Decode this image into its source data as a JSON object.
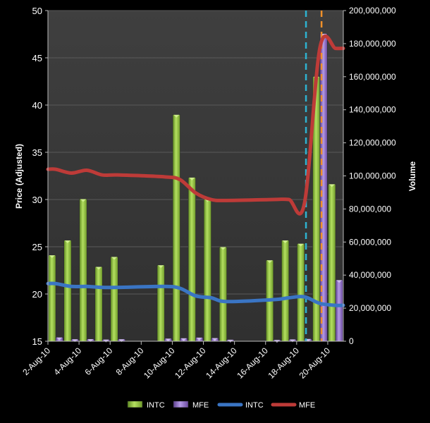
{
  "chart_data": {
    "type": "bar",
    "y_left_label": "Price (Adjusted)",
    "y_right_label": "Volume",
    "y_left_range": [
      15,
      50
    ],
    "y_left_ticks": [
      "15",
      "20",
      "25",
      "30",
      "35",
      "40",
      "45",
      "50"
    ],
    "y_right_range": [
      0,
      200000000
    ],
    "y_right_ticks": [
      "0",
      "20,000,000",
      "40,000,000",
      "60,000,000",
      "80,000,000",
      "100,000,000",
      "120,000,000",
      "140,000,000",
      "160,000,000",
      "180,000,000",
      "200,000,000"
    ],
    "x_range": [
      "2010-08-02",
      "2010-08-21"
    ],
    "x_tick_dates": [
      "2010-08-02",
      "2010-08-04",
      "2010-08-06",
      "2010-08-08",
      "2010-08-10",
      "2010-08-12",
      "2010-08-14",
      "2010-08-16",
      "2010-08-18",
      "2010-08-20"
    ],
    "x_tick_labels": [
      "2-Aug-10",
      "4-Aug-10",
      "6-Aug-10",
      "8-Aug-10",
      "10-Aug-10",
      "12-Aug-10",
      "14-Aug-10",
      "16-Aug-10",
      "18-Aug-10",
      "20-Aug-10"
    ],
    "grid": "horizontal",
    "legend_position": "bottom",
    "legend": [
      {
        "label": "INTC",
        "kind": "bar",
        "color": "#8cbf3c"
      },
      {
        "label": "MFE",
        "kind": "bar",
        "color": "#8e6cc3"
      },
      {
        "label": "INTC",
        "kind": "line",
        "color": "#3a75c4"
      },
      {
        "label": "MFE",
        "kind": "line",
        "color": "#be3b38"
      }
    ],
    "series": [
      {
        "name": "INTC",
        "kind": "bar",
        "axis": "right",
        "color": "#8cbf3c",
        "points": [
          {
            "date": "2010-08-02",
            "value": 52000000
          },
          {
            "date": "2010-08-03",
            "value": 61000000
          },
          {
            "date": "2010-08-04",
            "value": 86000000
          },
          {
            "date": "2010-08-05",
            "value": 45000000
          },
          {
            "date": "2010-08-06",
            "value": 51000000
          },
          {
            "date": "2010-08-09",
            "value": 46000000
          },
          {
            "date": "2010-08-10",
            "value": 137000000
          },
          {
            "date": "2010-08-11",
            "value": 99000000
          },
          {
            "date": "2010-08-12",
            "value": 86000000
          },
          {
            "date": "2010-08-13",
            "value": 57000000
          },
          {
            "date": "2010-08-16",
            "value": 49000000
          },
          {
            "date": "2010-08-17",
            "value": 61000000
          },
          {
            "date": "2010-08-18",
            "value": 59000000
          },
          {
            "date": "2010-08-19",
            "value": 160000000
          },
          {
            "date": "2010-08-20",
            "value": 95000000
          }
        ]
      },
      {
        "name": "MFE",
        "kind": "bar",
        "axis": "right",
        "color": "#8e6cc3",
        "points": [
          {
            "date": "2010-08-02",
            "value": 2300000
          },
          {
            "date": "2010-08-03",
            "value": 1200000
          },
          {
            "date": "2010-08-04",
            "value": 1300000
          },
          {
            "date": "2010-08-05",
            "value": 1000000
          },
          {
            "date": "2010-08-06",
            "value": 1200000
          },
          {
            "date": "2010-08-09",
            "value": 1600000
          },
          {
            "date": "2010-08-10",
            "value": 1800000
          },
          {
            "date": "2010-08-11",
            "value": 2200000
          },
          {
            "date": "2010-08-12",
            "value": 1900000
          },
          {
            "date": "2010-08-13",
            "value": 900000
          },
          {
            "date": "2010-08-16",
            "value": 800000
          },
          {
            "date": "2010-08-17",
            "value": 1100000
          },
          {
            "date": "2010-08-18",
            "value": 1400000
          },
          {
            "date": "2010-08-19",
            "value": 186000000
          },
          {
            "date": "2010-08-20",
            "value": 37000000
          }
        ]
      },
      {
        "name": "INTC",
        "kind": "line",
        "axis": "left",
        "color": "#3a75c4",
        "points": [
          {
            "date": "2010-08-02",
            "value": 21.1
          },
          {
            "date": "2010-08-03",
            "value": 20.8
          },
          {
            "date": "2010-08-04",
            "value": 20.8
          },
          {
            "date": "2010-08-05",
            "value": 20.7
          },
          {
            "date": "2010-08-06",
            "value": 20.7
          },
          {
            "date": "2010-08-09",
            "value": 20.8
          },
          {
            "date": "2010-08-10",
            "value": 20.6
          },
          {
            "date": "2010-08-11",
            "value": 19.8
          },
          {
            "date": "2010-08-12",
            "value": 19.6
          },
          {
            "date": "2010-08-13",
            "value": 19.2
          },
          {
            "date": "2010-08-16",
            "value": 19.4
          },
          {
            "date": "2010-08-17",
            "value": 19.6
          },
          {
            "date": "2010-08-18",
            "value": 19.7
          },
          {
            "date": "2010-08-19",
            "value": 19.0
          },
          {
            "date": "2010-08-20",
            "value": 18.8
          }
        ]
      },
      {
        "name": "MFE",
        "kind": "line",
        "axis": "left",
        "color": "#be3b38",
        "points": [
          {
            "date": "2010-08-02",
            "value": 33.2
          },
          {
            "date": "2010-08-03",
            "value": 32.8
          },
          {
            "date": "2010-08-04",
            "value": 33.1
          },
          {
            "date": "2010-08-05",
            "value": 32.6
          },
          {
            "date": "2010-08-06",
            "value": 32.6
          },
          {
            "date": "2010-08-09",
            "value": 32.4
          },
          {
            "date": "2010-08-10",
            "value": 32.1
          },
          {
            "date": "2010-08-11",
            "value": 30.7
          },
          {
            "date": "2010-08-12",
            "value": 30.0
          },
          {
            "date": "2010-08-13",
            "value": 29.9
          },
          {
            "date": "2010-08-16",
            "value": 30.0
          },
          {
            "date": "2010-08-17",
            "value": 30.0
          },
          {
            "date": "2010-08-18",
            "value": 29.6
          },
          {
            "date": "2010-08-19",
            "value": 46.1
          },
          {
            "date": "2010-08-20",
            "value": 46.0
          }
        ]
      }
    ],
    "reference_lines": [
      {
        "date": "2010-08-18",
        "offset_days": 0.6,
        "color": "#2eb2d0",
        "style": "dashed"
      },
      {
        "date": "2010-08-19",
        "offset_days": 0.6,
        "color": "#f0902a",
        "style": "dashed"
      }
    ]
  }
}
